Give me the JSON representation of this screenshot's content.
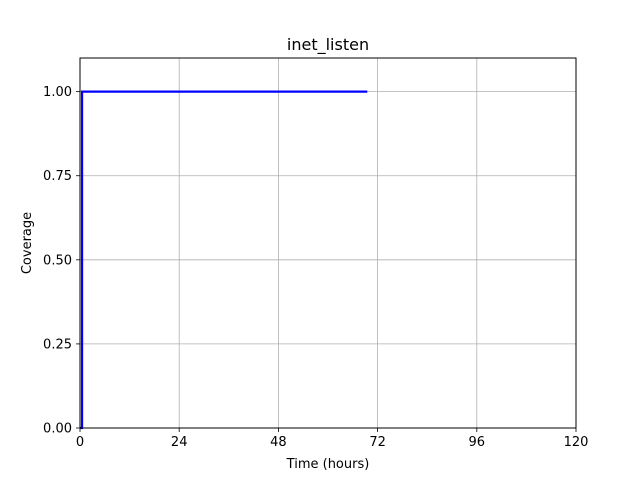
{
  "chart_data": {
    "type": "line",
    "title": "inet_listen",
    "xlabel": "Time (hours)",
    "ylabel": "Coverage",
    "xlim": [
      0,
      120
    ],
    "ylim": [
      0,
      1.1
    ],
    "xticks": [
      0,
      24,
      48,
      72,
      96,
      120
    ],
    "yticks": [
      0.0,
      0.25,
      0.5,
      0.75,
      1.0
    ],
    "xtick_labels": [
      "0",
      "24",
      "48",
      "72",
      "96",
      "120"
    ],
    "ytick_labels": [
      "0.00",
      "0.25",
      "0.50",
      "0.75",
      "1.00"
    ],
    "grid": true,
    "series": [
      {
        "color": "#0000ff",
        "x": [
          0,
          0.5,
          0.5,
          69.5
        ],
        "y": [
          0,
          0,
          1.0,
          1.0
        ]
      }
    ]
  }
}
